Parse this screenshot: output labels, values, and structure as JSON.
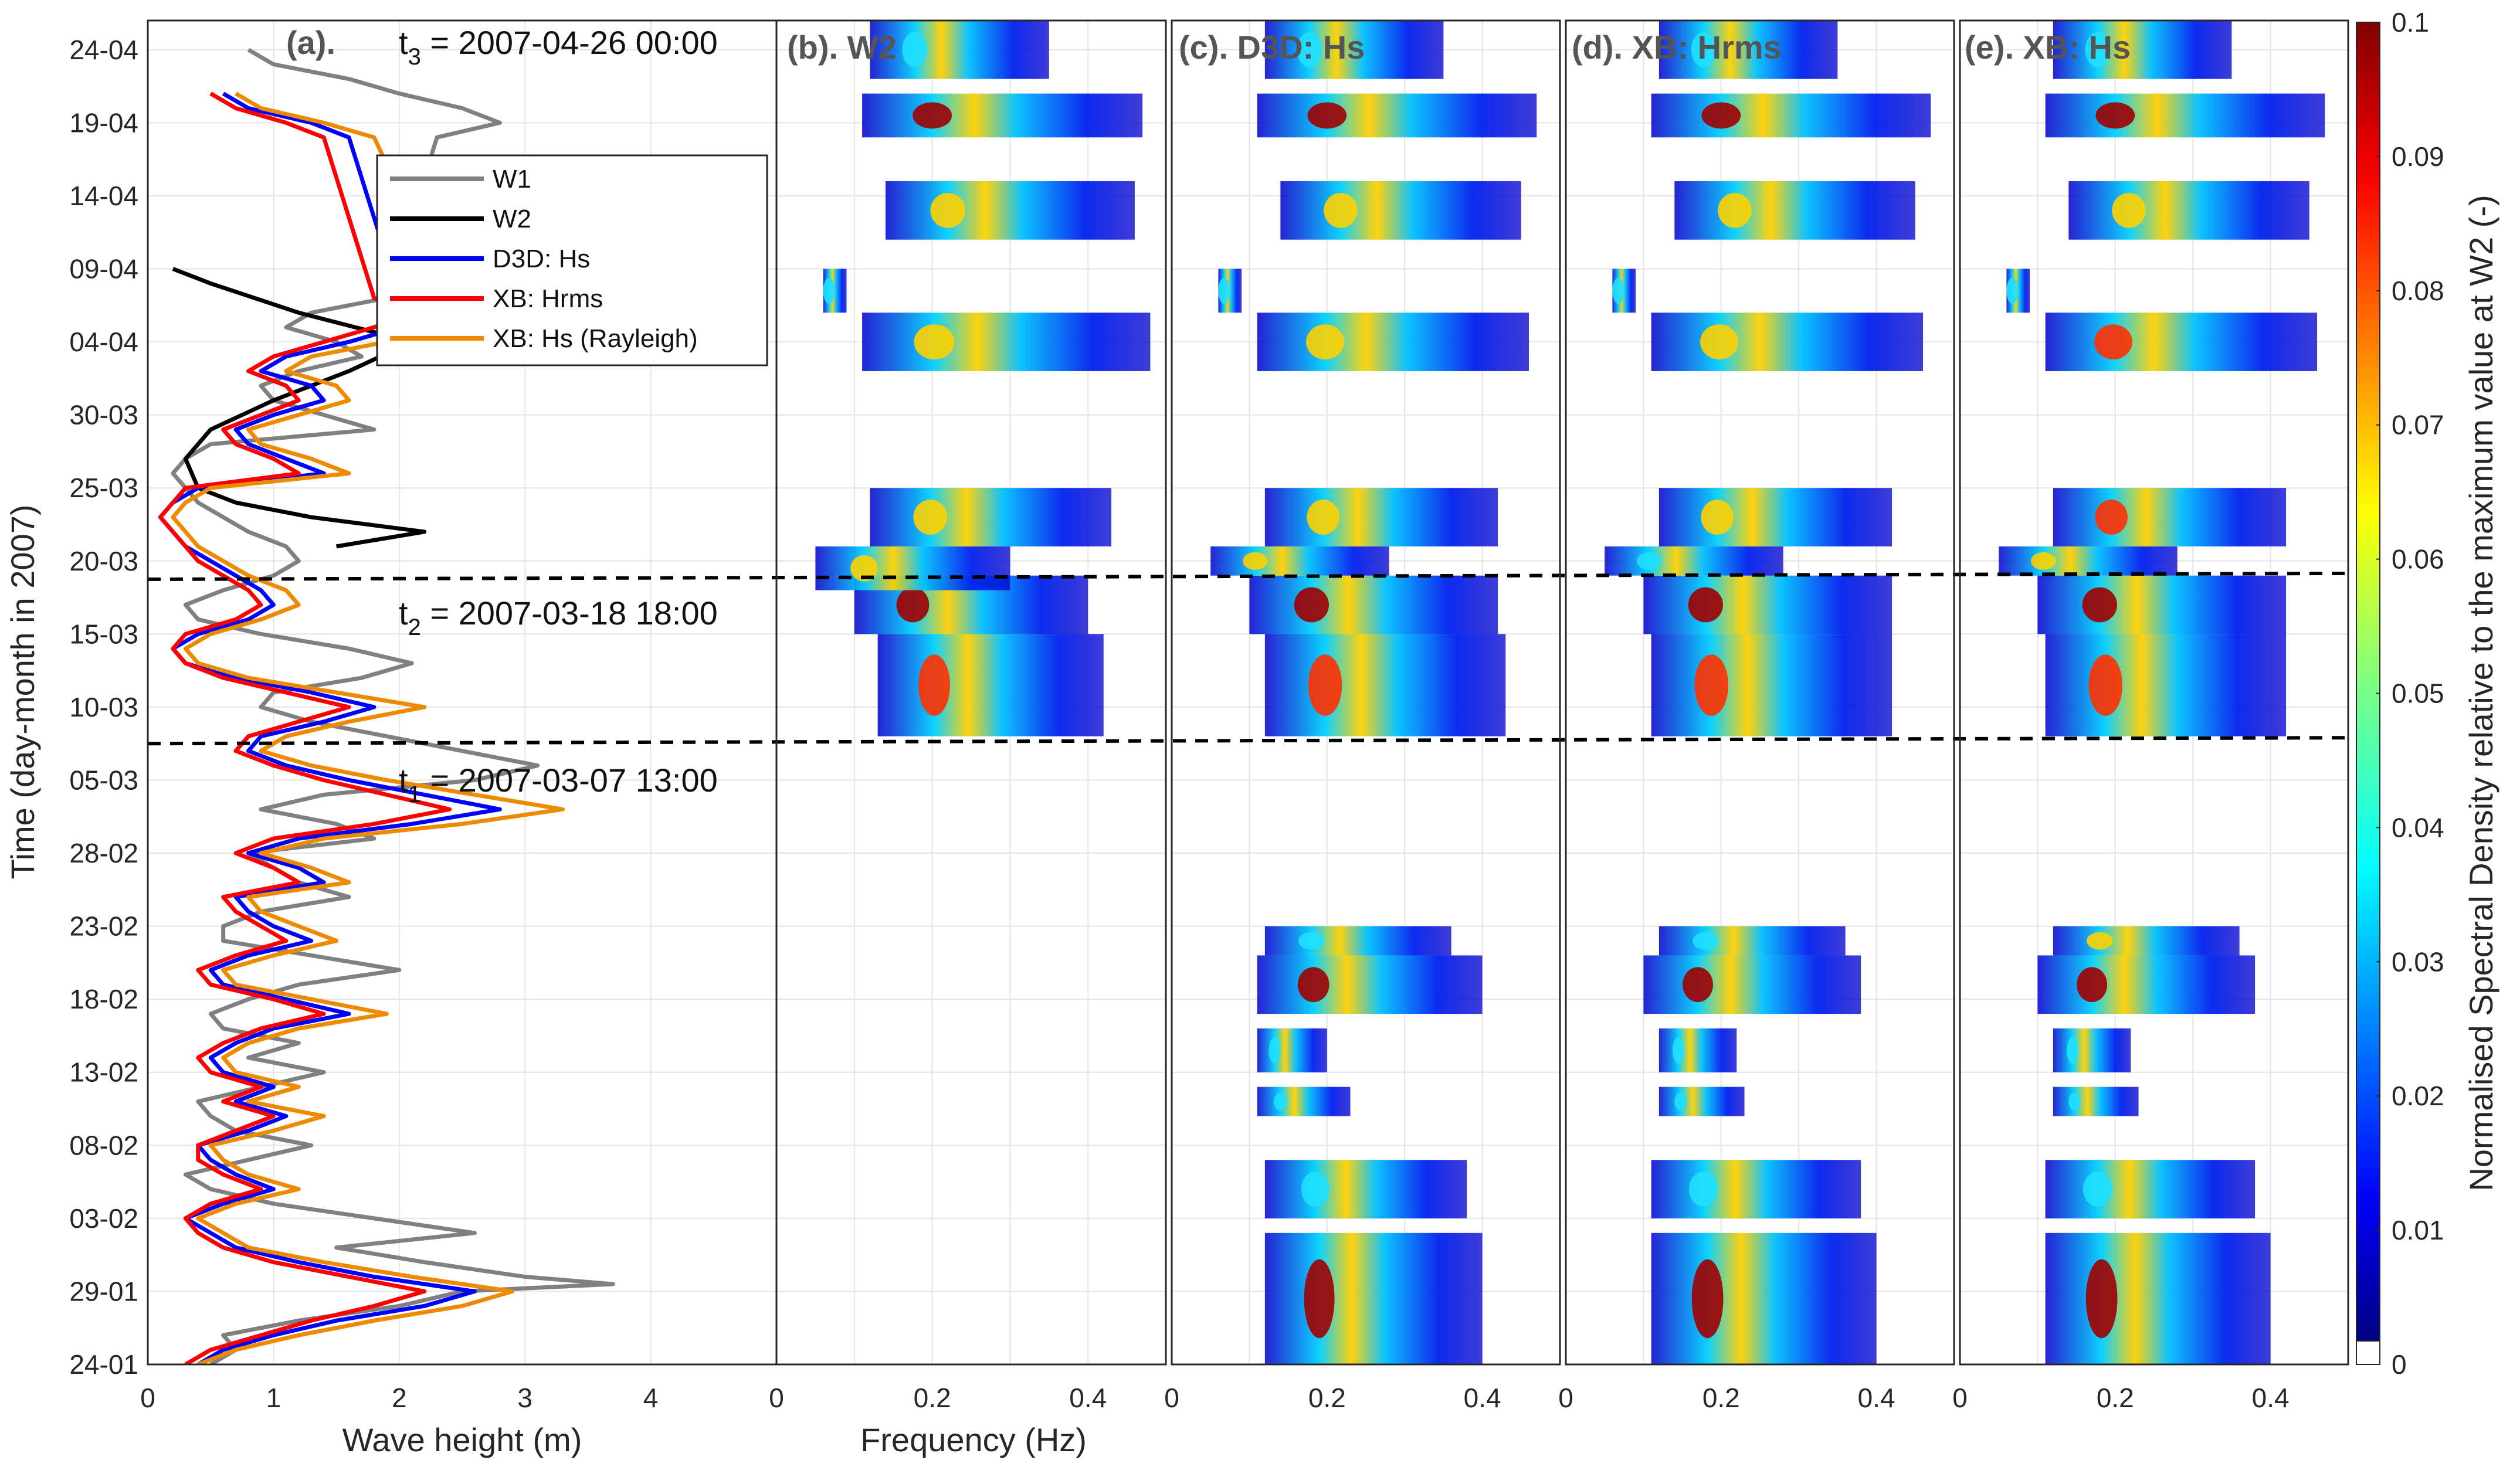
{
  "panels": [
    {
      "id": "a",
      "title": "(a)."
    },
    {
      "id": "b",
      "title": "(b). W2"
    },
    {
      "id": "c",
      "title": "(c). D3D: Hs"
    },
    {
      "id": "d",
      "title": "(d). XB: Hrms"
    },
    {
      "id": "e",
      "title": "(e). XB: Hs"
    }
  ],
  "ylabel": "Time (day-month in 2007)",
  "xlabel_a": "Wave height (m)",
  "xlabel_freq": "Frequency (Hz)",
  "yticks": [
    "24-01",
    "29-01",
    "03-02",
    "08-02",
    "13-02",
    "18-02",
    "23-02",
    "28-02",
    "05-03",
    "10-03",
    "15-03",
    "20-03",
    "25-03",
    "30-03",
    "04-04",
    "09-04",
    "14-04",
    "19-04",
    "24-04"
  ],
  "xticks_a": [
    "0",
    "1",
    "2",
    "3",
    "4"
  ],
  "xticks_freq": [
    "0",
    "0.2",
    "0.4"
  ],
  "colorbar": {
    "label": "Normalised Spectral Density relative to the maximum value at W2 (-)",
    "ticks": [
      "0",
      "0.01",
      "0.02",
      "0.03",
      "0.04",
      "0.05",
      "0.06",
      "0.07",
      "0.08",
      "0.09",
      "0.1"
    ]
  },
  "annotations": {
    "t1_label": "t",
    "t1_sub": "1",
    "t1_text": " = 2007-03-07 13:00",
    "t2_label": "t",
    "t2_sub": "2",
    "t2_text": " = 2007-03-18 18:00",
    "t3_label": "t",
    "t3_sub": "3",
    "t3_text": " = 2007-04-26 00:00"
  },
  "legend": [
    {
      "label": "W1",
      "color": "#808080"
    },
    {
      "label": "W2",
      "color": "#000000"
    },
    {
      "label": "D3D: Hs",
      "color": "#0000ff"
    },
    {
      "label": "XB: Hrms",
      "color": "#ff0000"
    },
    {
      "label": "XB: Hs (Rayleigh)",
      "color": "#ee8a00"
    }
  ],
  "chart_data": {
    "type": "line",
    "x_range_a": [
      0,
      5
    ],
    "x_range_freq": [
      0,
      0.5
    ],
    "y_range_days": [
      0,
      92
    ],
    "series": [
      {
        "name": "W1",
        "x_hs": [
          0.5,
          0.7,
          0.6,
          1.2,
          2.0,
          2.5,
          3.7,
          3.0,
          2.2,
          1.5,
          2.6,
          1.8,
          1.0,
          0.5,
          0.3,
          0.8,
          1.3,
          0.7,
          0.5,
          0.4,
          0.9,
          1.4,
          0.8,
          1.2,
          0.6,
          0.5,
          0.8,
          1.2,
          2.0,
          1.3,
          0.6,
          0.6,
          0.9,
          1.6,
          1.2,
          1.0,
          0.8,
          1.8,
          1.5,
          0.9,
          1.4,
          2.6,
          3.1,
          2.5,
          1.9,
          1.3,
          0.9,
          1.0,
          1.7,
          2.1,
          1.6,
          0.9,
          0.4,
          0.3,
          0.6,
          1.0,
          1.2,
          1.1,
          0.8,
          0.6,
          0.4,
          0.3,
          0.2,
          0.3,
          0.5,
          1.8,
          1.4,
          1.0,
          0.9,
          1.2,
          1.7,
          1.5,
          1.1,
          1.3,
          1.9,
          2.3,
          2.8,
          2.5,
          2.0,
          1.6,
          1.0,
          0.8
        ],
        "y_day": [
          0,
          1,
          2,
          3,
          4,
          5,
          5.5,
          6,
          7,
          8,
          9,
          10,
          11,
          12,
          13,
          14,
          15,
          16,
          17,
          18,
          19,
          20,
          21,
          22,
          23,
          24,
          25,
          26,
          27,
          28,
          29,
          30,
          31,
          32,
          33,
          34,
          35,
          36,
          37,
          38,
          39,
          40,
          41,
          42,
          43,
          44,
          45,
          46,
          47,
          48,
          49,
          50,
          51,
          52,
          53,
          54,
          55,
          56,
          57,
          58,
          59,
          60,
          61,
          62,
          63,
          64,
          65,
          66,
          67,
          68,
          69,
          70,
          71,
          72,
          73,
          84,
          85,
          86,
          87,
          88,
          89,
          90
        ]
      },
      {
        "name": "W2",
        "x_hs": [
          1.5,
          2.2,
          1.3,
          0.7,
          0.4,
          0.3,
          0.5,
          1.0,
          1.6,
          2.1,
          1.2,
          0.5,
          0.2
        ],
        "y_day": [
          56,
          57,
          58,
          59,
          60,
          62,
          64,
          66,
          68,
          70,
          72,
          74,
          75
        ]
      },
      {
        "name": "D3D: Hs",
        "x_hs": [
          0.4,
          0.6,
          1.0,
          1.5,
          2.2,
          2.6,
          1.8,
          1.2,
          0.7,
          0.5,
          0.3,
          0.6,
          1.0,
          0.7,
          0.5,
          0.4,
          0.8,
          1.1,
          0.7,
          1.0,
          0.6,
          0.5,
          0.7,
          1.0,
          1.6,
          1.1,
          0.6,
          0.5,
          0.8,
          1.3,
          1.0,
          0.8,
          0.7,
          1.4,
          1.2,
          0.8,
          1.2,
          2.1,
          2.8,
          2.2,
          1.6,
          1.1,
          0.8,
          0.9,
          1.4,
          1.8,
          1.3,
          0.7,
          0.3,
          0.2,
          0.4,
          0.8,
          1.0,
          0.9,
          0.7,
          0.5,
          0.3,
          0.2,
          0.1,
          0.2,
          0.4,
          1.4,
          1.1,
          0.8,
          0.7,
          1.0,
          1.4,
          1.3,
          0.9,
          1.1,
          1.6,
          2.0,
          2.4,
          2.0,
          1.6,
          1.3,
          0.8,
          0.6
        ],
        "y_day": [
          0,
          1,
          2,
          3,
          4,
          5,
          6,
          7,
          8,
          9,
          10,
          11,
          12,
          13,
          14,
          15,
          16,
          17,
          18,
          19,
          20,
          21,
          22,
          23,
          24,
          25,
          26,
          27,
          28,
          29,
          30,
          31,
          32,
          33,
          34,
          35,
          36,
          37,
          38,
          39,
          40,
          41,
          42,
          43,
          44,
          45,
          46,
          47,
          48,
          49,
          50,
          51,
          52,
          53,
          54,
          55,
          56,
          57,
          58,
          59,
          60,
          61,
          62,
          63,
          64,
          65,
          66,
          67,
          68,
          69,
          70,
          71,
          72,
          73,
          84,
          85,
          86,
          87
        ]
      },
      {
        "name": "XB: Hrms",
        "x_hs": [
          0.3,
          0.5,
          0.9,
          1.3,
          1.8,
          2.2,
          1.6,
          1.0,
          0.6,
          0.4,
          0.3,
          0.5,
          0.9,
          0.6,
          0.4,
          0.4,
          0.7,
          1.0,
          0.6,
          0.9,
          0.5,
          0.4,
          0.6,
          0.9,
          1.4,
          1.0,
          0.5,
          0.4,
          0.7,
          1.1,
          0.9,
          0.7,
          0.6,
          1.2,
          1.0,
          0.7,
          1.0,
          1.8,
          2.4,
          1.9,
          1.4,
          1.0,
          0.7,
          0.8,
          1.2,
          1.6,
          1.1,
          0.6,
          0.3,
          0.2,
          0.3,
          0.7,
          0.9,
          0.8,
          0.6,
          0.4,
          0.3,
          0.2,
          0.1,
          0.2,
          0.3,
          1.2,
          1.0,
          0.7,
          0.6,
          0.9,
          1.2,
          1.1,
          0.8,
          1.0,
          1.4,
          1.8,
          2.1,
          1.8,
          1.4,
          1.1,
          0.7,
          0.5
        ],
        "y_day": [
          0,
          1,
          2,
          3,
          4,
          5,
          6,
          7,
          8,
          9,
          10,
          11,
          12,
          13,
          14,
          15,
          16,
          17,
          18,
          19,
          20,
          21,
          22,
          23,
          24,
          25,
          26,
          27,
          28,
          29,
          30,
          31,
          32,
          33,
          34,
          35,
          36,
          37,
          38,
          39,
          40,
          41,
          42,
          43,
          44,
          45,
          46,
          47,
          48,
          49,
          50,
          51,
          52,
          53,
          54,
          55,
          56,
          57,
          58,
          59,
          60,
          61,
          62,
          63,
          64,
          65,
          66,
          67,
          68,
          69,
          70,
          71,
          72,
          73,
          84,
          85,
          86,
          87
        ]
      },
      {
        "name": "XB: Hs (Rayleigh)",
        "x_hs": [
          0.4,
          0.7,
          1.2,
          1.8,
          2.5,
          2.9,
          2.1,
          1.4,
          0.8,
          0.6,
          0.4,
          0.7,
          1.2,
          0.8,
          0.6,
          0.5,
          1.0,
          1.4,
          0.8,
          1.2,
          0.7,
          0.6,
          0.8,
          1.2,
          1.9,
          1.3,
          0.7,
          0.6,
          1.0,
          1.5,
          1.2,
          0.9,
          0.8,
          1.6,
          1.3,
          0.9,
          1.4,
          2.5,
          3.3,
          2.6,
          1.9,
          1.3,
          0.9,
          1.1,
          1.6,
          2.2,
          1.5,
          0.8,
          0.4,
          0.3,
          0.5,
          0.9,
          1.2,
          1.1,
          0.8,
          0.6,
          0.4,
          0.3,
          0.2,
          0.3,
          0.5,
          1.6,
          1.3,
          0.9,
          0.8,
          1.2,
          1.6,
          1.5,
          1.1,
          1.3,
          1.9,
          2.4,
          2.8,
          2.4,
          1.8,
          1.4,
          0.9,
          0.7
        ],
        "y_day": [
          0,
          1,
          2,
          3,
          4,
          5,
          6,
          7,
          8,
          9,
          10,
          11,
          12,
          13,
          14,
          15,
          16,
          17,
          18,
          19,
          20,
          21,
          22,
          23,
          24,
          25,
          26,
          27,
          28,
          29,
          30,
          31,
          32,
          33,
          34,
          35,
          36,
          37,
          38,
          39,
          40,
          41,
          42,
          43,
          44,
          45,
          46,
          47,
          48,
          49,
          50,
          51,
          52,
          53,
          54,
          55,
          56,
          57,
          58,
          59,
          60,
          61,
          62,
          63,
          64,
          65,
          66,
          67,
          68,
          69,
          70,
          71,
          72,
          73,
          84,
          85,
          86,
          87
        ]
      }
    ],
    "spectra_note": "normalised spectral density, 0 to 0.1",
    "spectra": {
      "W2": [
        [
          43,
          50,
          0.13,
          0.42,
          0.08
        ],
        [
          50,
          54,
          0.1,
          0.4,
          0.11
        ],
        [
          53,
          56,
          0.05,
          0.3,
          0.05
        ],
        [
          56,
          60,
          0.12,
          0.43,
          0.05
        ],
        [
          68,
          72,
          0.11,
          0.48,
          0.06
        ],
        [
          72,
          75,
          0.06,
          0.09,
          0.01
        ],
        [
          77,
          81,
          0.14,
          0.46,
          0.05
        ],
        [
          84,
          87,
          0.11,
          0.47,
          0.1
        ],
        [
          88,
          92,
          0.12,
          0.35,
          0.03
        ]
      ],
      "D3D: Hs": [
        [
          0,
          9,
          0.12,
          0.4,
          0.1
        ],
        [
          10,
          14,
          0.12,
          0.38,
          0.03
        ],
        [
          17,
          19,
          0.11,
          0.23,
          0.01
        ],
        [
          20,
          23,
          0.11,
          0.2,
          0.03
        ],
        [
          24,
          28,
          0.11,
          0.4,
          0.09
        ],
        [
          28,
          30,
          0.12,
          0.36,
          0.04
        ],
        [
          43,
          50,
          0.12,
          0.43,
          0.07
        ],
        [
          50,
          54,
          0.1,
          0.42,
          0.09
        ],
        [
          54,
          56,
          0.05,
          0.28,
          0.05
        ],
        [
          56,
          60,
          0.12,
          0.42,
          0.06
        ],
        [
          68,
          72,
          0.11,
          0.46,
          0.06
        ],
        [
          72,
          75,
          0.06,
          0.09,
          0.01
        ],
        [
          77,
          81,
          0.14,
          0.45,
          0.05
        ],
        [
          84,
          87,
          0.11,
          0.47,
          0.1
        ],
        [
          88,
          92,
          0.12,
          0.35,
          0.03
        ]
      ],
      "XB: Hrms": [
        [
          0,
          9,
          0.11,
          0.4,
          0.1
        ],
        [
          10,
          14,
          0.11,
          0.38,
          0.03
        ],
        [
          17,
          19,
          0.12,
          0.23,
          0.01
        ],
        [
          20,
          23,
          0.12,
          0.22,
          0.03
        ],
        [
          24,
          28,
          0.1,
          0.38,
          0.09
        ],
        [
          28,
          30,
          0.12,
          0.36,
          0.04
        ],
        [
          43,
          50,
          0.11,
          0.42,
          0.07
        ],
        [
          50,
          54,
          0.1,
          0.42,
          0.09
        ],
        [
          54,
          56,
          0.05,
          0.28,
          0.04
        ],
        [
          56,
          60,
          0.12,
          0.42,
          0.06
        ],
        [
          68,
          72,
          0.11,
          0.46,
          0.06
        ],
        [
          72,
          75,
          0.06,
          0.09,
          0.01
        ],
        [
          77,
          81,
          0.14,
          0.45,
          0.05
        ],
        [
          84,
          87,
          0.11,
          0.47,
          0.1
        ],
        [
          88,
          92,
          0.12,
          0.35,
          0.03
        ]
      ],
      "XB: Hs": [
        [
          0,
          9,
          0.11,
          0.4,
          0.11
        ],
        [
          10,
          14,
          0.11,
          0.38,
          0.04
        ],
        [
          17,
          19,
          0.12,
          0.23,
          0.02
        ],
        [
          20,
          23,
          0.12,
          0.22,
          0.04
        ],
        [
          24,
          28,
          0.1,
          0.38,
          0.1
        ],
        [
          28,
          30,
          0.12,
          0.36,
          0.05
        ],
        [
          43,
          50,
          0.11,
          0.42,
          0.08
        ],
        [
          50,
          54,
          0.1,
          0.42,
          0.1
        ],
        [
          54,
          56,
          0.05,
          0.28,
          0.05
        ],
        [
          56,
          60,
          0.12,
          0.42,
          0.07
        ],
        [
          68,
          72,
          0.11,
          0.46,
          0.07
        ],
        [
          72,
          75,
          0.06,
          0.09,
          0.01
        ],
        [
          77,
          81,
          0.14,
          0.45,
          0.06
        ],
        [
          84,
          87,
          0.11,
          0.47,
          0.1
        ],
        [
          88,
          92,
          0.12,
          0.35,
          0.03
        ]
      ]
    },
    "hlines_days": {
      "t1": 42.5,
      "t2": 53.75
    }
  }
}
